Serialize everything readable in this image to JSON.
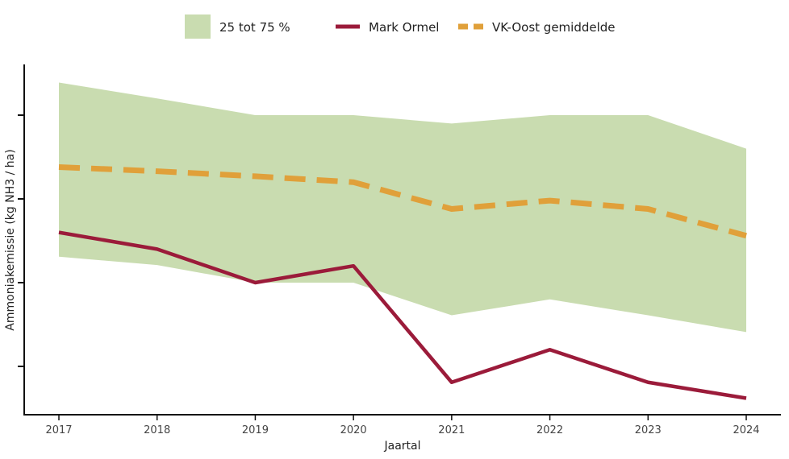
{
  "chart_data": {
    "type": "line",
    "title": "",
    "xlabel": "Jaartal",
    "ylabel": "Ammoniakemissie (kg NH3 / ha)",
    "x": [
      2017,
      2018,
      2019,
      2020,
      2021,
      2022,
      2023,
      2024
    ],
    "ylim": [
      0.42,
      4.6
    ],
    "y_tick_labels_shown": false,
    "grid": false,
    "legend_position": "top",
    "band": {
      "name": "25 tot 75 %",
      "color": "#c9dcb0",
      "upper": [
        4.39,
        4.2,
        4.0,
        4.0,
        3.9,
        4.0,
        4.0,
        3.6
      ],
      "lower": [
        2.31,
        2.21,
        2.0,
        2.0,
        1.61,
        1.8,
        1.61,
        1.41
      ]
    },
    "series": [
      {
        "name": "Mark Ormel",
        "color": "#9b1b3a",
        "style": "solid",
        "values": [
          2.6,
          2.4,
          2.0,
          2.2,
          0.81,
          1.2,
          0.81,
          0.62
        ]
      },
      {
        "name": "VK-Oost gemiddelde",
        "color": "#e0a03a",
        "style": "dashed",
        "values": [
          3.38,
          3.33,
          3.27,
          3.2,
          2.88,
          2.98,
          2.88,
          2.56
        ]
      }
    ]
  }
}
